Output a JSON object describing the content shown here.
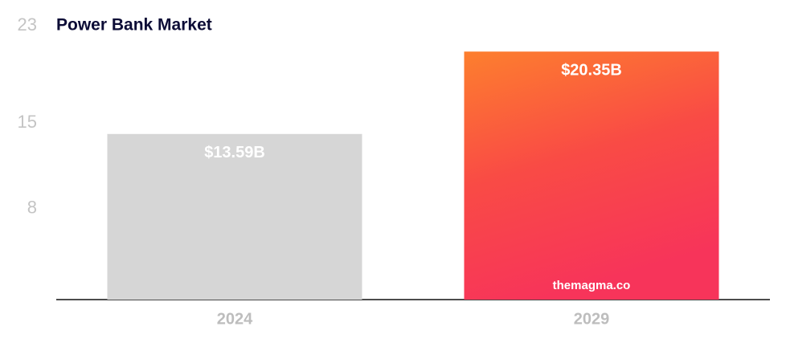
{
  "chart_data": {
    "type": "bar",
    "title": "Power Bank Market",
    "categories": [
      "2024",
      "2029"
    ],
    "values": [
      13.59,
      20.35
    ],
    "value_labels": [
      "$13.59B",
      "$20.35B"
    ],
    "colors": [
      "#d6d6d6",
      [
        "#fd7f2e",
        "#f94b45",
        "#f7345a"
      ]
    ],
    "ylim": [
      0,
      23
    ],
    "yticks": [
      8,
      15,
      23
    ],
    "grid": false,
    "watermark": "themagma.co"
  }
}
